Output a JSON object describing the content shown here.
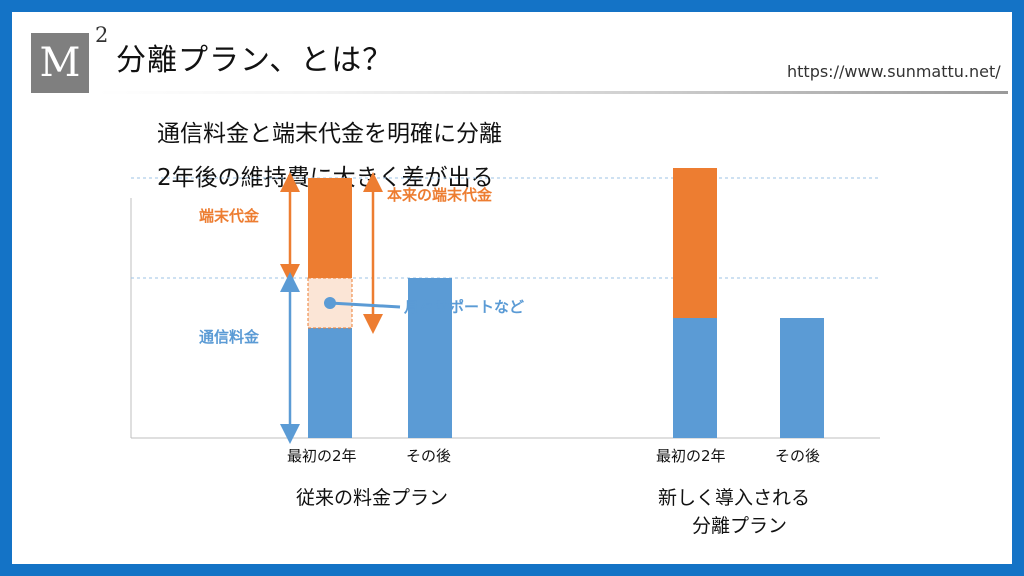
{
  "header": {
    "logo_letter": "M",
    "logo_sup": "2",
    "title": "分離プラン、とは？",
    "url": "https://www.sunmattu.net/"
  },
  "subtitles": [
    "通信料金と端末代金を明確に分離",
    "2年後の維持費に大きく差が出る"
  ],
  "chart_data": {
    "type": "bar",
    "stacked": true,
    "ylim": [
      0,
      260
    ],
    "grid": "dashed-horizontal",
    "groups": [
      {
        "name": "従来の料金プラン",
        "categories": [
          "最初の2年",
          "その後"
        ],
        "series": [
          {
            "name": "通信料金",
            "values": [
              110,
              160
            ]
          },
          {
            "name": "月々サポートなど",
            "values": [
              50,
              0
            ],
            "style": "hatched"
          },
          {
            "name": "端末代金",
            "values": [
              100,
              0
            ]
          }
        ]
      },
      {
        "name": "新しく導入される 分離プラン",
        "categories": [
          "最初の2年",
          "その後"
        ],
        "series": [
          {
            "name": "通信料金",
            "values": [
              120,
              120
            ]
          },
          {
            "name": "端末代金",
            "values": [
              150,
              0
            ]
          }
        ]
      }
    ],
    "annotations": {
      "left_top": "端末代金",
      "left_bottom": "通信料金",
      "right": "本来の端末代金",
      "callout": "月々サポートなど"
    }
  },
  "group_titles": {
    "left": "従来の料金プラン",
    "right_line1": "新しく導入される",
    "right_line2": "分離プラン"
  },
  "colors": {
    "blue": "#5b9bd5",
    "orange": "#ed7d31",
    "peach": "#fbe5d6",
    "frame": "#1473c6"
  }
}
